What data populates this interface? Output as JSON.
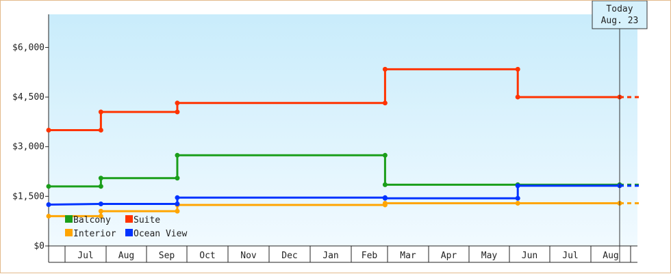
{
  "chart_data": {
    "type": "line",
    "step": true,
    "title": "",
    "xlabel": "",
    "ylabel": "",
    "x_axis": {
      "months": [
        "Jul",
        "Aug",
        "Sep",
        "Oct",
        "Nov",
        "Dec",
        "Jan",
        "Feb",
        "Mar",
        "Apr",
        "May",
        "Jun",
        "Jul",
        "Aug"
      ],
      "range": [
        "2018-06-23",
        "2019-08-23"
      ]
    },
    "y_axis": {
      "range": [
        0,
        7000
      ],
      "ticks": [
        0,
        1500,
        3000,
        4500,
        6000
      ],
      "tick_labels": [
        "$0",
        "$1,500",
        "$3,000",
        "$4,500",
        "$6,000"
      ]
    },
    "today_marker": {
      "line1": "Today",
      "line2": "Aug. 23",
      "date": "2019-08-23"
    },
    "legend": {
      "placement": "bottom-left"
    },
    "series": [
      {
        "name": "Balcony",
        "color": "#1a9e1a",
        "points": [
          [
            "2018-06-23",
            1800
          ],
          [
            "2018-08-01",
            1800
          ],
          [
            "2018-08-01",
            2050
          ],
          [
            "2018-09-27",
            2050
          ],
          [
            "2018-09-27",
            2740
          ],
          [
            "2019-03-01",
            2740
          ],
          [
            "2019-03-01",
            1850
          ],
          [
            "2019-06-08",
            1850
          ],
          [
            "2019-08-23",
            1850
          ]
        ]
      },
      {
        "name": "Suite",
        "color": "#ff3300",
        "points": [
          [
            "2018-06-23",
            3500
          ],
          [
            "2018-08-01",
            3500
          ],
          [
            "2018-08-01",
            4050
          ],
          [
            "2018-09-27",
            4050
          ],
          [
            "2018-09-27",
            4320
          ],
          [
            "2019-03-01",
            4320
          ],
          [
            "2019-03-01",
            5340
          ],
          [
            "2019-06-08",
            5340
          ],
          [
            "2019-06-08",
            4500
          ],
          [
            "2019-08-23",
            4500
          ]
        ]
      },
      {
        "name": "Interior",
        "color": "#ffa500",
        "points": [
          [
            "2018-06-23",
            900
          ],
          [
            "2018-08-01",
            900
          ],
          [
            "2018-08-01",
            1050
          ],
          [
            "2018-09-27",
            1050
          ],
          [
            "2018-09-27",
            1240
          ],
          [
            "2019-03-01",
            1240
          ],
          [
            "2019-03-01",
            1290
          ],
          [
            "2019-06-08",
            1290
          ],
          [
            "2019-08-23",
            1290
          ]
        ]
      },
      {
        "name": "Ocean View",
        "color": "#0033ff",
        "points": [
          [
            "2018-06-23",
            1250
          ],
          [
            "2018-08-01",
            1270
          ],
          [
            "2018-09-27",
            1270
          ],
          [
            "2018-09-27",
            1460
          ],
          [
            "2019-03-01",
            1460
          ],
          [
            "2019-03-01",
            1440
          ],
          [
            "2019-06-08",
            1440
          ],
          [
            "2019-06-08",
            1820
          ],
          [
            "2019-08-23",
            1820
          ]
        ]
      }
    ]
  }
}
